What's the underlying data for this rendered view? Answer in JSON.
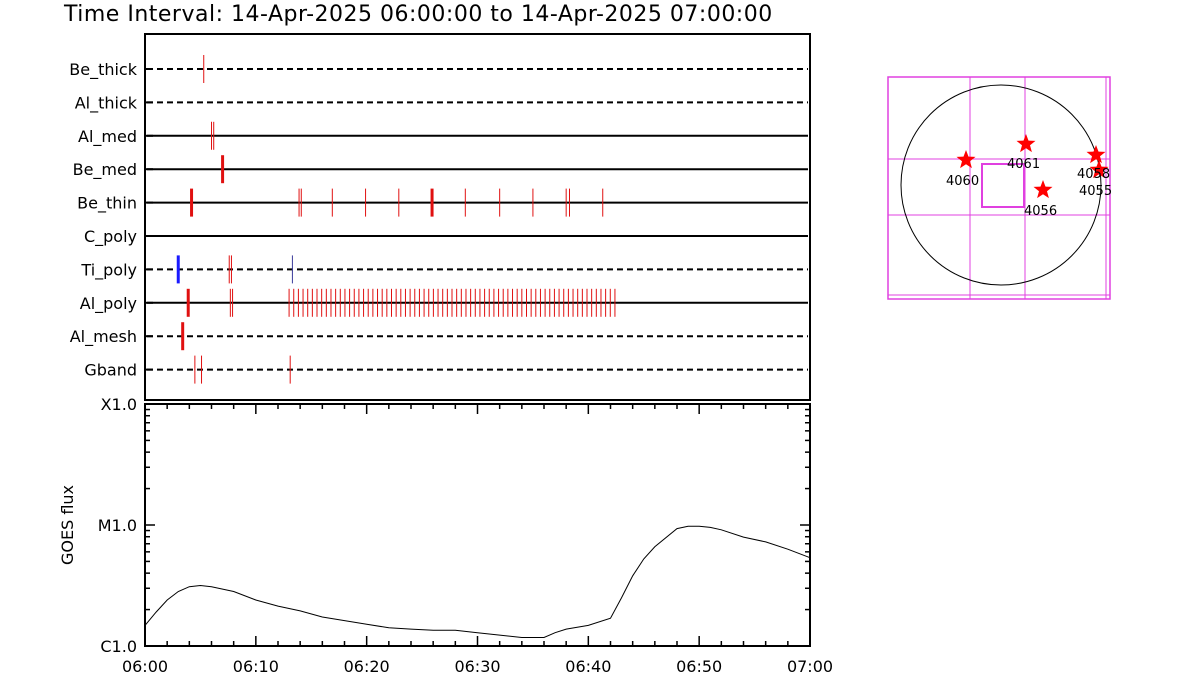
{
  "title": "Time Interval: 14-Apr-2025 06:00:00 to 14-Apr-2025 07:00:00",
  "chart_data": [
    {
      "type": "event-timeline",
      "x_range": [
        "06:00",
        "07:00"
      ],
      "channels": [
        {
          "label": "Be_thick",
          "line": "dashed",
          "events": [
            {
              "t": 5.3
            }
          ]
        },
        {
          "label": "Al_thick",
          "line": "dashed",
          "events": []
        },
        {
          "label": "Al_med",
          "line": "solid",
          "events": [
            {
              "t": 6.0
            },
            {
              "t": 6.2
            }
          ]
        },
        {
          "label": "Be_med",
          "line": "solid",
          "events": [
            {
              "t": 7.0,
              "w": 3
            }
          ]
        },
        {
          "label": "Be_thin",
          "line": "solid",
          "events": [
            {
              "t": 4.2,
              "w": 3
            },
            {
              "t": 13.9
            },
            {
              "t": 14.1
            },
            {
              "t": 16.9
            },
            {
              "t": 19.9
            },
            {
              "t": 22.9
            },
            {
              "t": 25.9,
              "w": 3
            },
            {
              "t": 28.9
            },
            {
              "t": 32.0
            },
            {
              "t": 35.0
            },
            {
              "t": 38.0
            },
            {
              "t": 38.3
            },
            {
              "t": 41.3
            }
          ]
        },
        {
          "label": "C_poly",
          "line": "solid",
          "events": []
        },
        {
          "label": "Ti_poly",
          "line": "dashed",
          "events": [
            {
              "t": 3.0,
              "w": 3,
              "color": "#1a1aff"
            },
            {
              "t": 7.6
            },
            {
              "t": 7.8
            },
            {
              "t": 13.3,
              "color": "#3a3a9a"
            }
          ]
        },
        {
          "label": "Al_poly",
          "line": "solid",
          "events": [
            {
              "t": 3.9,
              "w": 3
            },
            {
              "t": 7.7
            },
            {
              "t": 7.9
            }
          ],
          "dense": {
            "from": 13.0,
            "to": 42.5,
            "step": 0.42
          }
        },
        {
          "label": "Al_mesh",
          "line": "dashed",
          "events": [
            {
              "t": 3.4,
              "w": 3
            }
          ]
        },
        {
          "label": "Gband",
          "line": "dashed",
          "events": [
            {
              "t": 4.5
            },
            {
              "t": 5.1
            },
            {
              "t": 13.1
            }
          ]
        }
      ]
    },
    {
      "type": "line",
      "ylabel": "GOES flux",
      "yscale": "log",
      "y_ticks": [
        "X1.0",
        "M1.0",
        "C1.0"
      ],
      "x_ticks": [
        "06:00",
        "06:10",
        "06:20",
        "06:30",
        "06:40",
        "06:50",
        "07:00"
      ],
      "series_minutes": [
        0,
        1,
        2,
        3,
        4,
        5,
        6,
        7,
        8,
        10,
        12,
        14,
        16,
        18,
        20,
        22,
        24,
        26,
        28,
        30,
        32,
        34,
        36,
        37,
        38,
        40,
        42,
        43,
        44,
        45,
        46,
        48,
        49,
        50,
        51,
        52,
        54,
        56,
        58,
        60
      ],
      "series_log_flux": [
        -5.83,
        -5.72,
        -5.62,
        -5.55,
        -5.51,
        -5.5,
        -5.51,
        -5.53,
        -5.55,
        -5.62,
        -5.67,
        -5.71,
        -5.76,
        -5.79,
        -5.82,
        -5.85,
        -5.86,
        -5.87,
        -5.87,
        -5.89,
        -5.91,
        -5.93,
        -5.93,
        -5.89,
        -5.86,
        -5.83,
        -5.77,
        -5.6,
        -5.42,
        -5.28,
        -5.18,
        -5.03,
        -5.01,
        -5.01,
        -5.02,
        -5.04,
        -5.1,
        -5.14,
        -5.2,
        -5.27
      ]
    },
    {
      "type": "map",
      "active_regions": [
        "4060",
        "4061",
        "4058",
        "4055",
        "4056"
      ]
    }
  ]
}
